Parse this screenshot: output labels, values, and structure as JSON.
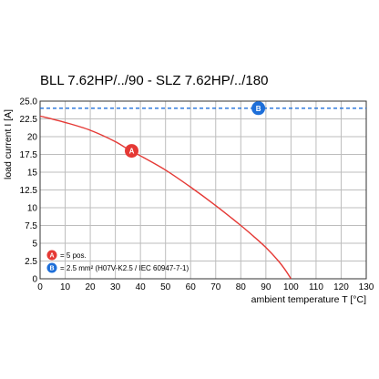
{
  "chart_data": {
    "type": "line",
    "title": "BLL 7.62HP/../90 - SLZ 7.62HP/../180",
    "xlabel": "ambient temperature T [°C]",
    "ylabel": "load current I [A]",
    "xlim": [
      0,
      130
    ],
    "ylim": [
      0,
      25
    ],
    "xticks": [
      0,
      10,
      20,
      30,
      40,
      50,
      60,
      70,
      80,
      90,
      100,
      110,
      120,
      130
    ],
    "yticks": [
      0,
      2.5,
      5,
      7.5,
      10,
      12.5,
      15,
      17.5,
      20,
      22.5,
      25
    ],
    "x_tick_labels": [
      "0",
      "10",
      "20",
      "30",
      "40",
      "50",
      "60",
      "70",
      "80",
      "90",
      "100",
      "110",
      "120",
      "130"
    ],
    "y_tick_labels": [
      "0",
      "2.5",
      "5",
      "7.5",
      "10",
      "12.5",
      "15",
      "17.5",
      "20",
      "22.5",
      "25.0"
    ],
    "grid": true,
    "series": [
      {
        "name": "= 5 pos.",
        "marker": "A",
        "color": "#e53935",
        "style": "solid",
        "x": [
          0,
          10,
          20,
          30,
          36,
          40,
          50,
          60,
          70,
          80,
          85,
          90,
          95,
          98,
          100
        ],
        "y": [
          22.9,
          22.0,
          20.9,
          19.3,
          18.0,
          17.3,
          15.3,
          12.9,
          10.3,
          7.5,
          6.0,
          4.4,
          2.5,
          1.1,
          0
        ],
        "marker_at": {
          "x": 36.5,
          "y": 18.0
        }
      },
      {
        "name": "= 2.5 mm² (H07V-K2.5 / IEC 60947-7-1)",
        "marker": "B",
        "color": "#1e6fd9",
        "style": "dashed",
        "x": [
          0,
          130
        ],
        "y": [
          24.0,
          24.0
        ],
        "marker_at": {
          "x": 87,
          "y": 24.0
        }
      }
    ],
    "legend_placement": "bottom-left"
  }
}
